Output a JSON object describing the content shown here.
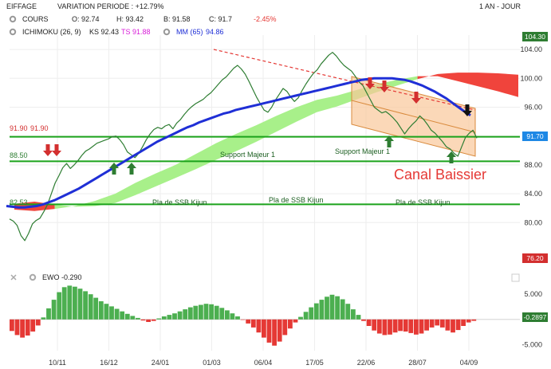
{
  "header": {
    "ticker": "EIFFAGE",
    "variation": "VARIATION PERIODE : +12.79%",
    "period": "1 AN - JOUR",
    "cours": {
      "name": "COURS",
      "o": "O: 92.74",
      "h": "H: 93.42",
      "b": "B: 91.58",
      "c": "C: 91.7",
      "chg": "-2.45%"
    },
    "ichimoku": {
      "name": "ICHIMOKU (26, 9)",
      "ks": "KS 92.43",
      "ts": "TS 91.88"
    },
    "mm": {
      "name": "MM (65)",
      "value": "94.86"
    }
  },
  "colors": {
    "price": "#2e7d32",
    "mm": "#1f2fd6",
    "kijun_line": "#1ba31b",
    "cloud_bull": "#a8f08a",
    "cloud_bear": "#f0443c",
    "channel_fill": "#f9c89a",
    "channel_line": "#d98a3c",
    "ewo_pos": "#4caf50",
    "ewo_neg": "#e53935",
    "tag_green": "#2e7d32",
    "tag_red": "#d32f2f",
    "annotation_red": "#e53935"
  },
  "annotations": {
    "support_1": "Support Majeur 1",
    "support_2": "Support Majeur 1",
    "ssb_1": "Pla de SSB Kijun",
    "ssb_2": "Pla de SSB Kijun",
    "ssb_3": "Pla de SSB Kijun",
    "canal": "Canal Baissier",
    "level_919": "91.90",
    "level_919b": "91.90",
    "level_885": "88.50",
    "level_825": "82.53"
  },
  "tags": {
    "last_price": "91.70",
    "top": "104.30",
    "bottom": "76.20",
    "ewo_last": "-0.2897"
  },
  "ewo": {
    "label": "EWO -0.290"
  },
  "chart_data": [
    {
      "type": "line",
      "title": "EIFFAGE",
      "x_ticks": [
        "10/11",
        "16/12",
        "24/01",
        "01/03",
        "06/04",
        "17/05",
        "22/06",
        "28/07",
        "04/09"
      ],
      "y_ticks": [
        80,
        84,
        88,
        92,
        96,
        100,
        104
      ],
      "ylim": [
        75.5,
        106
      ],
      "levels": [
        91.9,
        88.5,
        82.53
      ],
      "series": [
        {
          "name": "COURS",
          "values": [
            80.5,
            80.2,
            79.6,
            78.2,
            77.5,
            78.5,
            79.8,
            80.3,
            80.6,
            81.5,
            82.5,
            84.0,
            85.5,
            86.5,
            87.6,
            88.2,
            87.5,
            88.0,
            88.6,
            89.3,
            89.9,
            90.2,
            90.6,
            91.0,
            91.2,
            91.4,
            91.6,
            91.9,
            92.0,
            91.5,
            90.8,
            89.8,
            89.4,
            89.0,
            89.6,
            90.5,
            91.5,
            92.3,
            92.9,
            93.2,
            93.0,
            93.4,
            93.6,
            93.0,
            93.8,
            94.3,
            95.0,
            95.6,
            96.1,
            96.5,
            96.8,
            97.1,
            97.6,
            98.0,
            98.6,
            99.2,
            99.8,
            100.2,
            100.8,
            101.4,
            101.8,
            101.3,
            100.6,
            99.6,
            98.5,
            97.4,
            96.5,
            95.6,
            95.3,
            96.0,
            97.0,
            97.8,
            98.6,
            98.2,
            97.4,
            96.8,
            97.3,
            98.3,
            99.2,
            100.0,
            100.7,
            101.2,
            102.0,
            102.6,
            103.2,
            103.6,
            103.1,
            102.4,
            101.8,
            101.4,
            101.0,
            100.3,
            99.5,
            99.0,
            98.0,
            97.0,
            96.0,
            95.6,
            95.2,
            95.4,
            95.0,
            94.5,
            93.9,
            93.1,
            92.3,
            93.0,
            93.6,
            94.1,
            94.8,
            94.3,
            93.6,
            92.8,
            92.4,
            91.8,
            91.2,
            90.5,
            90.2,
            89.6,
            89.2,
            90.5,
            91.8,
            92.4,
            92.8,
            91.7
          ]
        },
        {
          "name": "MM (65)",
          "values": [
            82.3,
            82.2,
            82.1,
            82.1,
            82.2,
            82.3,
            82.5,
            82.8,
            83.1,
            83.5,
            83.9,
            84.3,
            84.7,
            85.2,
            85.7,
            86.2,
            86.7,
            87.2,
            87.7,
            88.2,
            88.7,
            89.2,
            89.7,
            90.2,
            90.7,
            91.2,
            91.6,
            92.0,
            92.4,
            92.8,
            93.2,
            93.5,
            93.9,
            94.2,
            94.5,
            94.8,
            95.1,
            95.3,
            95.6,
            95.8,
            96.0,
            96.2,
            96.4,
            96.6,
            96.8,
            97.0,
            97.2,
            97.4,
            97.6,
            97.8,
            98.0,
            98.2,
            98.4,
            98.6,
            98.8,
            99.0,
            99.2,
            99.4,
            99.6,
            99.8,
            99.9,
            100.0,
            100.0,
            100.0,
            100.0,
            99.9,
            99.8,
            99.6,
            99.3,
            99.0,
            98.6,
            98.2,
            97.7,
            97.2,
            96.6,
            96.0,
            95.4,
            94.86
          ]
        }
      ],
      "cloud_top": [
        81.8,
        81.6,
        81.9,
        82.3,
        83.0,
        84.0,
        85.5,
        86.8,
        88.0,
        89.5,
        91.0,
        92.3,
        93.5,
        94.8,
        96.0,
        97.0,
        97.6,
        98.4,
        99.2,
        99.8,
        100.3,
        100.3,
        99.6,
        98.9,
        98.2,
        97.4
      ],
      "cloud_bottom": [
        82.6,
        82.9,
        82.5,
        82.2,
        82.3,
        82.7,
        83.8,
        85.0,
        86.2,
        87.4,
        88.7,
        89.9,
        91.2,
        92.6,
        94.0,
        95.3,
        96.1,
        97.1,
        98.1,
        99.0,
        99.9,
        100.6,
        100.8,
        100.8,
        100.7,
        100.5
      ],
      "cloud_bull_from": 2,
      "cloud_bull_to": 18,
      "cloud_bear_from": 20
    },
    {
      "type": "bar",
      "title": "EWO -0.290",
      "y_ticks": [
        5.0,
        -5.0
      ],
      "ylim": [
        -6.2,
        7.4
      ],
      "values": [
        -2.3,
        -3.1,
        -3.6,
        -3.2,
        -2.4,
        -1.2,
        0.4,
        2.2,
        3.9,
        5.4,
        6.4,
        6.7,
        6.5,
        6.1,
        5.6,
        5.0,
        4.3,
        3.6,
        3.1,
        2.6,
        2.1,
        1.6,
        1.1,
        0.7,
        0.3,
        -0.2,
        -0.5,
        -0.3,
        0.2,
        0.6,
        0.9,
        1.2,
        1.6,
        2.0,
        2.4,
        2.7,
        2.9,
        3.1,
        3.0,
        2.7,
        2.3,
        1.8,
        1.2,
        0.6,
        -0.1,
        -0.8,
        -1.6,
        -2.6,
        -3.6,
        -4.6,
        -5.2,
        -4.4,
        -3.1,
        -1.8,
        -0.6,
        0.5,
        1.5,
        2.4,
        3.2,
        3.9,
        4.5,
        4.9,
        4.6,
        4.0,
        3.1,
        2.0,
        0.9,
        -0.3,
        -1.3,
        -2.2,
        -2.8,
        -3.1,
        -3.0,
        -2.6,
        -2.3,
        -2.4,
        -2.7,
        -3.0,
        -2.8,
        -2.2,
        -1.6,
        -1.2,
        -1.6,
        -2.2,
        -2.6,
        -2.1,
        -1.3,
        -0.6,
        -0.29
      ]
    }
  ]
}
